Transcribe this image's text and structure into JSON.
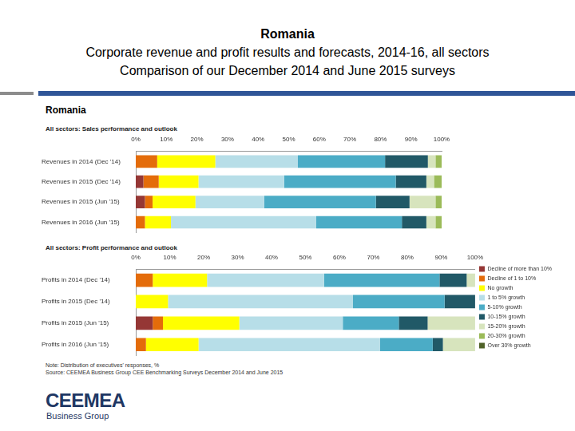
{
  "title": [
    "Romania",
    "Corporate revenue and profit results and forecasts, 2014-16, all sectors",
    "Comparison of our December 2014 and June 2015 surveys"
  ],
  "panel_title": "Romania",
  "note": "Note: Distribution of executives' responses, %",
  "source": "Source: CEEMEA Business Group CEE Benchmarking Surveys December 2014 and June 2015",
  "logo": {
    "name": "CEEMEA",
    "subtitle": "Business Group"
  },
  "chart_data": [
    {
      "type": "bar",
      "title": "All sectors: Sales performance and outlook",
      "orientation": "horizontal",
      "stacked": true,
      "grid": false,
      "categories": [
        "Revenues in 2014 (Dec '14)",
        "Revenues in 2015 (Dec '14)",
        "Revenues in 2015 (Jun '15)",
        "Revenues in 2016 (Jun '15)"
      ],
      "xlim": [
        0,
        100
      ],
      "xticks": [
        {
          "value": 0,
          "label": "0%"
        },
        {
          "value": 10,
          "label": "10%"
        },
        {
          "value": 20,
          "label": "20%"
        },
        {
          "value": 30,
          "label": "30%"
        },
        {
          "value": 40,
          "label": "40%"
        },
        {
          "value": 50,
          "label": "50%"
        },
        {
          "value": 60,
          "label": "60%"
        },
        {
          "value": 70,
          "label": "70%"
        },
        {
          "value": 80,
          "label": "80%"
        },
        {
          "value": 90,
          "label": "90%"
        },
        {
          "value": 100,
          "label": "100%"
        }
      ],
      "series": [
        {
          "name": "Decline of more than 10%",
          "color": "#953735",
          "values": [
            0,
            2.5,
            3,
            0
          ]
        },
        {
          "name": "Decline of 1 to 10%",
          "color": "#e46c0a",
          "values": [
            7,
            5,
            2.5,
            3
          ]
        },
        {
          "name": "No growth",
          "color": "#ffff00",
          "values": [
            19,
            13,
            14,
            8.5
          ]
        },
        {
          "name": "1 to 5% growth",
          "color": "#b7dee8",
          "values": [
            27,
            28,
            22.5,
            47.5
          ]
        },
        {
          "name": "5-10% growth",
          "color": "#4bacc6",
          "values": [
            28.5,
            36.5,
            36.5,
            28
          ]
        },
        {
          "name": "10-15% growth",
          "color": "#215967",
          "values": [
            14,
            10,
            11,
            8
          ]
        },
        {
          "name": "15-20% growth",
          "color": "#d7e4bd",
          "values": [
            2.5,
            2.5,
            8.5,
            3
          ]
        },
        {
          "name": "20-30% growth",
          "color": "#9bbb59",
          "values": [
            2,
            2.5,
            2,
            2
          ]
        },
        {
          "name": "Over 30% growth",
          "color": "#4f6228",
          "values": [
            0,
            0,
            0,
            0
          ]
        }
      ]
    },
    {
      "type": "bar",
      "title": "All sectors: Profit performance and outlook",
      "orientation": "horizontal",
      "stacked": true,
      "grid": false,
      "legend": "right",
      "categories": [
        "Profits in 2014 (Dec '14)",
        "Profits in 2015 (Dec '14)",
        "Profits in 2015 (Jun '15)",
        "Profits in 2016 (Jun '15)"
      ],
      "xlim": [
        0,
        100
      ],
      "xticks": [
        {
          "value": 0,
          "label": "0%"
        },
        {
          "value": 10,
          "label": "10%"
        },
        {
          "value": 20,
          "label": "20%"
        },
        {
          "value": 30,
          "label": "30%"
        },
        {
          "value": 40,
          "label": "40%"
        },
        {
          "value": 50,
          "label": "50%"
        },
        {
          "value": 60,
          "label": "60%"
        },
        {
          "value": 70,
          "label": "70%"
        },
        {
          "value": 80,
          "label": "80%"
        },
        {
          "value": 90,
          "label": "90%"
        },
        {
          "value": 100,
          "label": "100%"
        }
      ],
      "series": [
        {
          "name": "Decline of more than 10%",
          "color": "#953735",
          "values": [
            0,
            0,
            5,
            0
          ]
        },
        {
          "name": "Decline of 1 to 10%",
          "color": "#e46c0a",
          "values": [
            5,
            0,
            3,
            3
          ]
        },
        {
          "name": "No growth",
          "color": "#ffff00",
          "values": [
            16,
            9.5,
            22.5,
            15.5
          ]
        },
        {
          "name": "1 to 5% growth",
          "color": "#b7dee8",
          "values": [
            34.5,
            54.5,
            30.5,
            53.5
          ]
        },
        {
          "name": "5-10% growth",
          "color": "#4bacc6",
          "values": [
            34,
            27,
            16.5,
            15.5
          ]
        },
        {
          "name": "10-15% growth",
          "color": "#215967",
          "values": [
            8,
            9,
            8.5,
            3
          ]
        },
        {
          "name": "15-20% growth",
          "color": "#d7e4bd",
          "values": [
            2.5,
            0,
            14,
            9.5
          ]
        },
        {
          "name": "20-30% growth",
          "color": "#9bbb59",
          "values": [
            0,
            0,
            0,
            0
          ]
        },
        {
          "name": "Over 30% growth",
          "color": "#4f6228",
          "values": [
            0,
            0,
            0,
            0
          ]
        }
      ]
    }
  ]
}
